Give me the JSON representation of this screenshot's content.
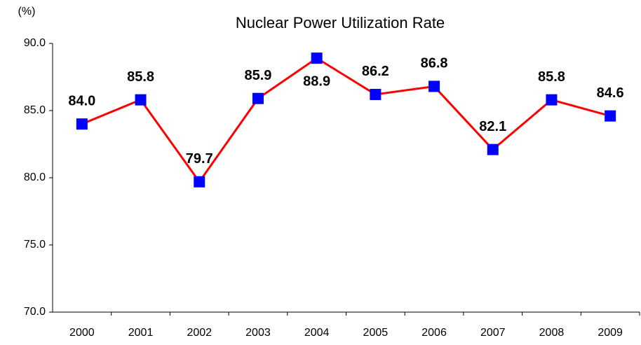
{
  "chart_data": {
    "type": "line",
    "title": "Nuclear Power Utilization Rate",
    "y_unit": "(%)",
    "categories": [
      "2000",
      "2001",
      "2002",
      "2003",
      "2004",
      "2005",
      "2006",
      "2007",
      "2008",
      "2009"
    ],
    "series": [
      {
        "name": "Nuclear Power Utilization Rate",
        "color": "#ff0000",
        "marker_color": "#0000ff",
        "values": [
          84.0,
          85.8,
          79.7,
          85.9,
          88.9,
          86.2,
          86.8,
          82.1,
          85.8,
          84.6
        ],
        "value_labels": [
          "84.0",
          "85.8",
          "79.7",
          "85.9",
          "88.9",
          "86.2",
          "86.8",
          "82.1",
          "85.8",
          "84.6"
        ]
      }
    ],
    "ylim": [
      70,
      90
    ],
    "yticks": [
      {
        "value": 70,
        "label": "70.0"
      },
      {
        "value": 75,
        "label": "75.0"
      },
      {
        "value": 80,
        "label": "80.0"
      },
      {
        "value": 85,
        "label": "85.0"
      },
      {
        "value": 90,
        "label": "90.0"
      }
    ],
    "grid": false
  }
}
